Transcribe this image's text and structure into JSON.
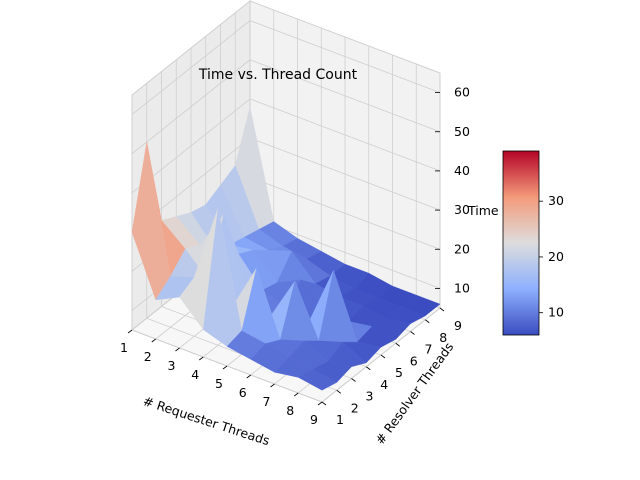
{
  "chart_data": {
    "type": "surface3d",
    "title": "Time vs. Thread Count",
    "xlabel": "# Requester Threads",
    "ylabel": "# Resolver Threads",
    "zlabel": "Time",
    "x_ticks": [
      "1",
      "2",
      "3",
      "4",
      "5",
      "6",
      "7",
      "8",
      "9"
    ],
    "y_ticks": [
      "1",
      "2",
      "3",
      "4",
      "5",
      "6",
      "7",
      "8",
      "9"
    ],
    "z_ticks": [
      "10",
      "20",
      "30",
      "40",
      "50",
      "60"
    ],
    "colorbar_ticks": [
      "10",
      "20",
      "30"
    ],
    "colormap": "coolwarm",
    "colorbar_range": [
      6,
      39
    ],
    "x": [
      1,
      2,
      3,
      4,
      5,
      6,
      7,
      8,
      9
    ],
    "y": [
      1,
      2,
      3,
      4,
      5,
      6,
      7,
      8,
      9
    ],
    "z": [
      [
        30,
        50,
        27,
        25,
        23,
        22,
        24,
        26,
        38
      ],
      [
        15,
        18,
        22,
        20,
        16,
        14,
        13,
        12,
        11
      ],
      [
        18,
        20,
        16,
        30,
        17,
        15,
        12,
        10,
        9
      ],
      [
        12,
        40,
        12,
        13,
        10,
        9,
        14,
        9,
        8
      ],
      [
        10,
        11,
        24,
        9,
        8,
        12,
        8,
        7,
        7
      ],
      [
        9,
        10,
        8,
        20,
        7,
        8,
        7,
        6,
        7
      ],
      [
        8,
        9,
        10,
        7,
        22,
        6,
        7,
        6,
        6
      ],
      [
        9,
        8,
        7,
        9,
        6,
        7,
        6,
        6,
        6
      ],
      [
        8,
        7,
        8,
        6,
        7,
        6,
        7,
        6,
        6
      ]
    ],
    "grid": true
  }
}
